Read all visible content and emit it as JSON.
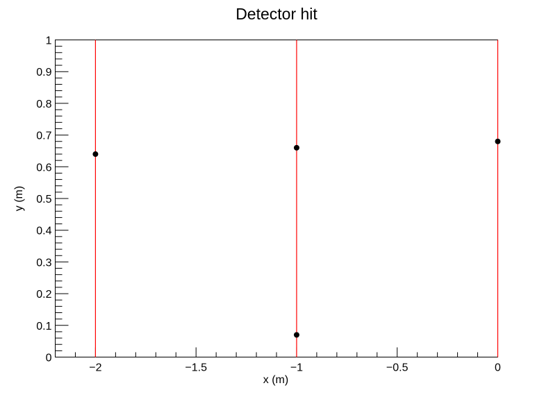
{
  "chart_data": {
    "type": "scatter",
    "title": "Detector hit",
    "xlabel": "x (m)",
    "ylabel": "y (m)",
    "xlim": [
      -2.2,
      0
    ],
    "ylim": [
      0,
      1
    ],
    "x_ticks": [
      -2,
      -1.5,
      -1,
      -0.5,
      0
    ],
    "x_tick_labels": [
      "−2",
      "−1.5",
      "−1",
      "−0.5",
      "0"
    ],
    "y_ticks": [
      0,
      0.1,
      0.2,
      0.3,
      0.4,
      0.5,
      0.6,
      0.7,
      0.8,
      0.9,
      1
    ],
    "y_tick_labels": [
      "0",
      "0.1",
      "0.2",
      "0.3",
      "0.4",
      "0.5",
      "0.6",
      "0.7",
      "0.8",
      "0.9",
      "1"
    ],
    "grid": false,
    "vertical_lines": [
      -2,
      -1,
      0
    ],
    "series": [
      {
        "x": [
          -2,
          -1,
          -1,
          0
        ],
        "y": [
          0.64,
          0.66,
          0.07,
          0.68
        ]
      }
    ],
    "colors": {
      "points": "#000000",
      "lines": "#ff0000",
      "axes": "#000000"
    }
  }
}
